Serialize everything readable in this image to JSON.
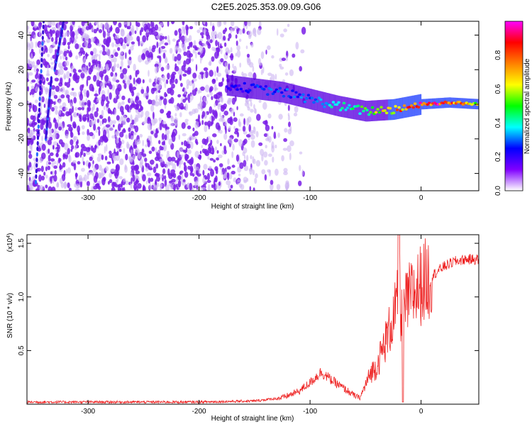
{
  "title": "C2E5.2025.353.09.09.G06",
  "colors": {
    "spectrogram_dots": "#7a1ee8",
    "spectrogram_light": "#cdb6f2",
    "snr_line": "#ee2222",
    "axis": "#000000"
  },
  "chart_data": [
    {
      "type": "heatmap",
      "xlabel": "Height of straight line (km)",
      "ylabel": "Frequency (Hz)",
      "xlim": [
        -355,
        52
      ],
      "ylim": [
        -50,
        48
      ],
      "x_ticks": [
        "-300",
        "-200",
        "-100",
        "0"
      ],
      "y_ticks": [
        "-40",
        "-20",
        "0",
        "20",
        "40"
      ],
      "colorbar": {
        "label": "Normalized spectral amplitude",
        "range": [
          0,
          1
        ],
        "ticks": [
          "0.0",
          "0.2",
          "0.4",
          "0.6",
          "0.8"
        ],
        "colormap": [
          "#ffffff",
          "#8000ff",
          "#0000ff",
          "#00ffff",
          "#00ff00",
          "#ffff00",
          "#ff8000",
          "#ff0000",
          "#ff00ff"
        ]
      },
      "signal_track": {
        "x": [
          -175,
          -150,
          -125,
          -100,
          -75,
          -50,
          -25,
          0,
          25,
          52
        ],
        "frequency": [
          11,
          9,
          7,
          3,
          -1,
          -4,
          -3,
          0,
          1,
          0
        ],
        "amplitude": [
          0.2,
          0.25,
          0.3,
          0.3,
          0.4,
          0.5,
          0.7,
          0.9,
          0.85,
          0.6
        ]
      }
    },
    {
      "type": "line",
      "xlabel": "Height of straight line (km)",
      "ylabel": "SNR (10 * v/v)",
      "y_multiplier": "(x10",
      "y_multiplier_exp": "4",
      "xlim": [
        -355,
        52
      ],
      "ylim": [
        0,
        1.58
      ],
      "x_ticks": [
        "-300",
        "-200",
        "-100",
        "0"
      ],
      "y_ticks": [
        "0.5",
        "1.0",
        "1.5"
      ],
      "series": [
        {
          "x": [
            -355,
            -200,
            -150,
            -125,
            -110,
            -100,
            -90,
            -80,
            -70,
            -60,
            -55,
            -50,
            -45,
            -40,
            -35,
            -30,
            -25,
            -22,
            -20,
            -18,
            -15,
            -10,
            -5,
            0,
            10,
            20,
            30,
            40,
            52
          ],
          "y": [
            0.02,
            0.02,
            0.03,
            0.06,
            0.12,
            0.2,
            0.3,
            0.22,
            0.15,
            0.08,
            0.06,
            0.18,
            0.3,
            0.35,
            0.5,
            0.65,
            0.8,
            0.9,
            1.0,
            0.85,
            0.9,
            1.0,
            1.05,
            1.12,
            1.2,
            1.28,
            1.33,
            1.35,
            1.35
          ]
        }
      ]
    }
  ]
}
